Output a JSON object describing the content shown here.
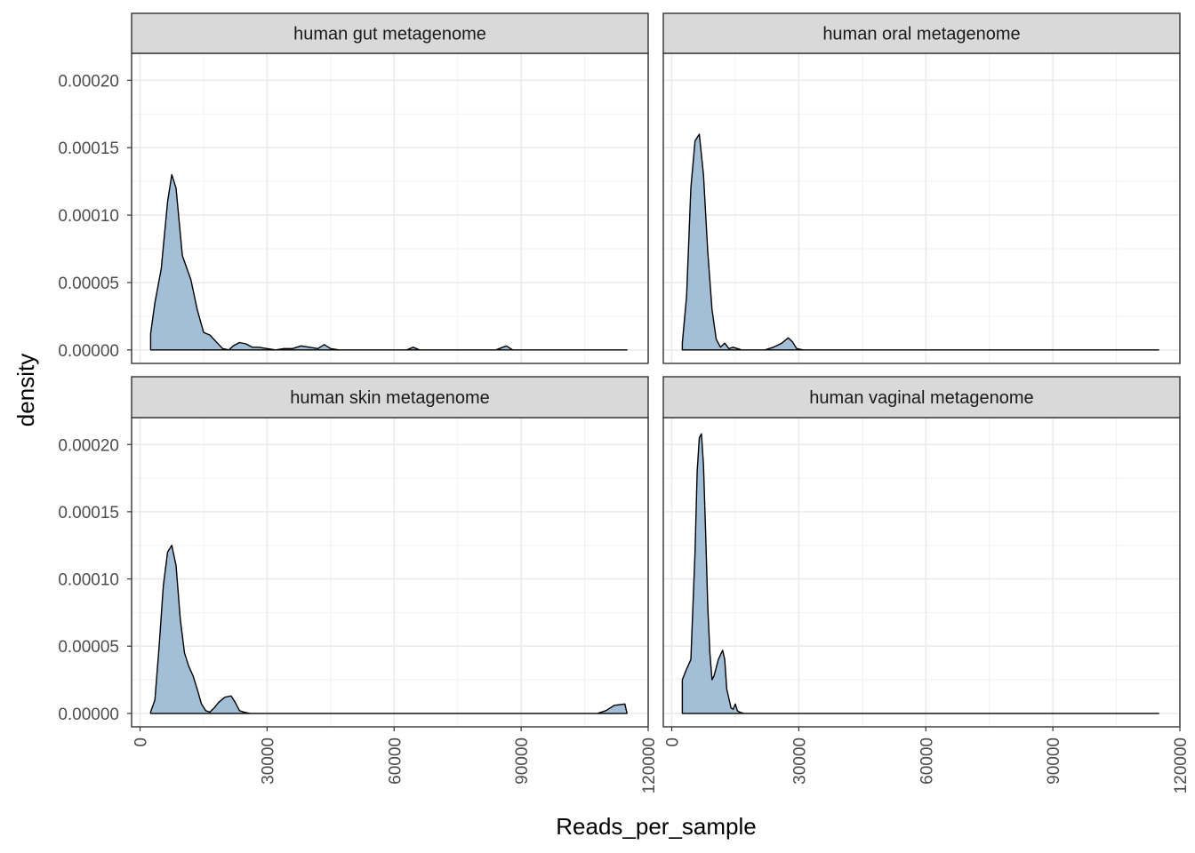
{
  "chart_data": {
    "type": "area",
    "xlabel": "Reads_per_sample",
    "ylabel": "density",
    "xlim": [
      -2000,
      120000
    ],
    "ylim": [
      -1e-05,
      0.00022
    ],
    "x_ticks": [
      0,
      30000,
      60000,
      90000,
      120000
    ],
    "x_tick_labels": [
      "0",
      "30000",
      "60000",
      "90000",
      "120000"
    ],
    "y_ticks": [
      0,
      5e-05,
      0.0001,
      0.00015,
      0.0002
    ],
    "y_tick_labels": [
      "0.00000",
      "0.00005",
      "0.00010",
      "0.00015",
      "0.00020"
    ],
    "grid": true,
    "fill_color": "#a3bfd8",
    "line_color": "#000000",
    "strip_color": "#d9d9d9",
    "panels": [
      {
        "name": "human gut metagenome",
        "x": [
          2500,
          3500,
          5000,
          6500,
          7500,
          8500,
          10000,
          12000,
          13500,
          15000,
          16500,
          18000,
          19500,
          21000,
          22000,
          23500,
          25000,
          26500,
          28000,
          30000,
          32000,
          34000,
          36000,
          38000,
          40000,
          42000,
          43500,
          45000,
          47000,
          60000,
          63000,
          64500,
          66000,
          68000,
          84000,
          86500,
          88000,
          90000,
          115000
        ],
        "y": [
          1.2e-05,
          3.5e-05,
          6e-05,
          0.00011,
          0.00013,
          0.00012,
          7e-05,
          5.2e-05,
          3e-05,
          1.3e-05,
          1.1e-05,
          6e-06,
          1e-06,
          0,
          3e-06,
          5.5e-06,
          4.5e-06,
          2e-06,
          2e-06,
          1e-06,
          0,
          1e-06,
          1e-06,
          3e-06,
          2e-06,
          1e-06,
          4e-06,
          1e-06,
          0,
          0,
          0,
          2e-06,
          0,
          0,
          0,
          3e-06,
          0,
          0,
          0
        ]
      },
      {
        "name": "human oral metagenome",
        "x": [
          2500,
          3500,
          4500,
          5500,
          6500,
          7500,
          8500,
          9500,
          10500,
          11500,
          12500,
          13500,
          14500,
          15500,
          16500,
          17500,
          18500,
          20000,
          22000,
          24000,
          26000,
          27500,
          28500,
          29500,
          31000,
          115000
        ],
        "y": [
          5e-06,
          4e-05,
          0.00012,
          0.000155,
          0.00016,
          0.00013,
          7.3e-05,
          3e-05,
          8e-06,
          2e-06,
          5e-06,
          1e-06,
          2e-06,
          1e-06,
          0,
          0,
          0,
          0,
          0,
          2e-06,
          5e-06,
          9e-06,
          6e-06,
          1e-06,
          0,
          0
        ]
      },
      {
        "name": "human skin metagenome",
        "x": [
          2500,
          3500,
          4500,
          5500,
          6500,
          7500,
          8500,
          9500,
          10500,
          11500,
          12500,
          13500,
          14500,
          15500,
          16500,
          17500,
          18500,
          20000,
          21500,
          22500,
          23500,
          24500,
          26000,
          108000,
          110000,
          112000,
          114500,
          115000
        ],
        "y": [
          1e-06,
          1e-05,
          5e-05,
          9.5e-05,
          0.00012,
          0.000125,
          0.00011,
          7e-05,
          4.5e-05,
          3.5e-05,
          2.8e-05,
          1.8e-05,
          7e-06,
          2e-06,
          1e-06,
          4e-06,
          8e-06,
          1.2e-05,
          1.3e-05,
          8e-06,
          2e-06,
          1e-06,
          0,
          0,
          2e-06,
          6e-06,
          7e-06,
          0
        ]
      },
      {
        "name": "human vaginal metagenome",
        "x": [
          2500,
          3500,
          4500,
          5500,
          6000,
          6500,
          7000,
          7500,
          8000,
          8500,
          9000,
          9500,
          10000,
          11000,
          12000,
          12500,
          13000,
          14000,
          14500,
          15000,
          15500,
          16000,
          17000,
          115000
        ],
        "y": [
          2.5e-05,
          3.3e-05,
          4e-05,
          0.00012,
          0.00018,
          0.000205,
          0.000208,
          0.000185,
          0.000135,
          8e-05,
          4.5e-05,
          2.5e-05,
          2.8e-05,
          4e-05,
          4.7e-05,
          4e-05,
          1.8e-05,
          4e-06,
          3e-06,
          7e-06,
          2e-06,
          1e-06,
          0,
          0
        ]
      }
    ]
  }
}
